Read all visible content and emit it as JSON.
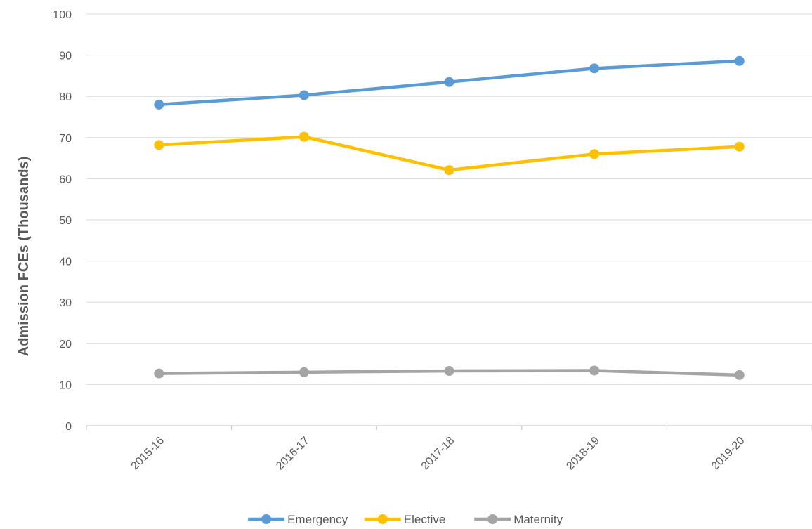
{
  "chart_data": {
    "type": "line",
    "title": "",
    "xlabel": "",
    "ylabel": "Admission FCEs (Thousands)",
    "categories": [
      "2015-16",
      "2016-17",
      "2017-18",
      "2018-19",
      "2019-20"
    ],
    "ylim": [
      0,
      100
    ],
    "yticks": [
      0,
      10,
      20,
      30,
      40,
      50,
      60,
      70,
      80,
      90,
      100
    ],
    "grid": true,
    "legend_position": "bottom",
    "series": [
      {
        "name": "Emergency",
        "color": "#5b9bd5",
        "values": [
          78.0,
          80.3,
          83.5,
          86.8,
          88.6
        ]
      },
      {
        "name": "Elective",
        "color": "#ffc000",
        "values": [
          68.2,
          70.2,
          62.1,
          66.0,
          67.8
        ]
      },
      {
        "name": "Maternity",
        "color": "#a5a5a5",
        "values": [
          12.7,
          13.0,
          13.3,
          13.4,
          12.3
        ]
      }
    ]
  }
}
